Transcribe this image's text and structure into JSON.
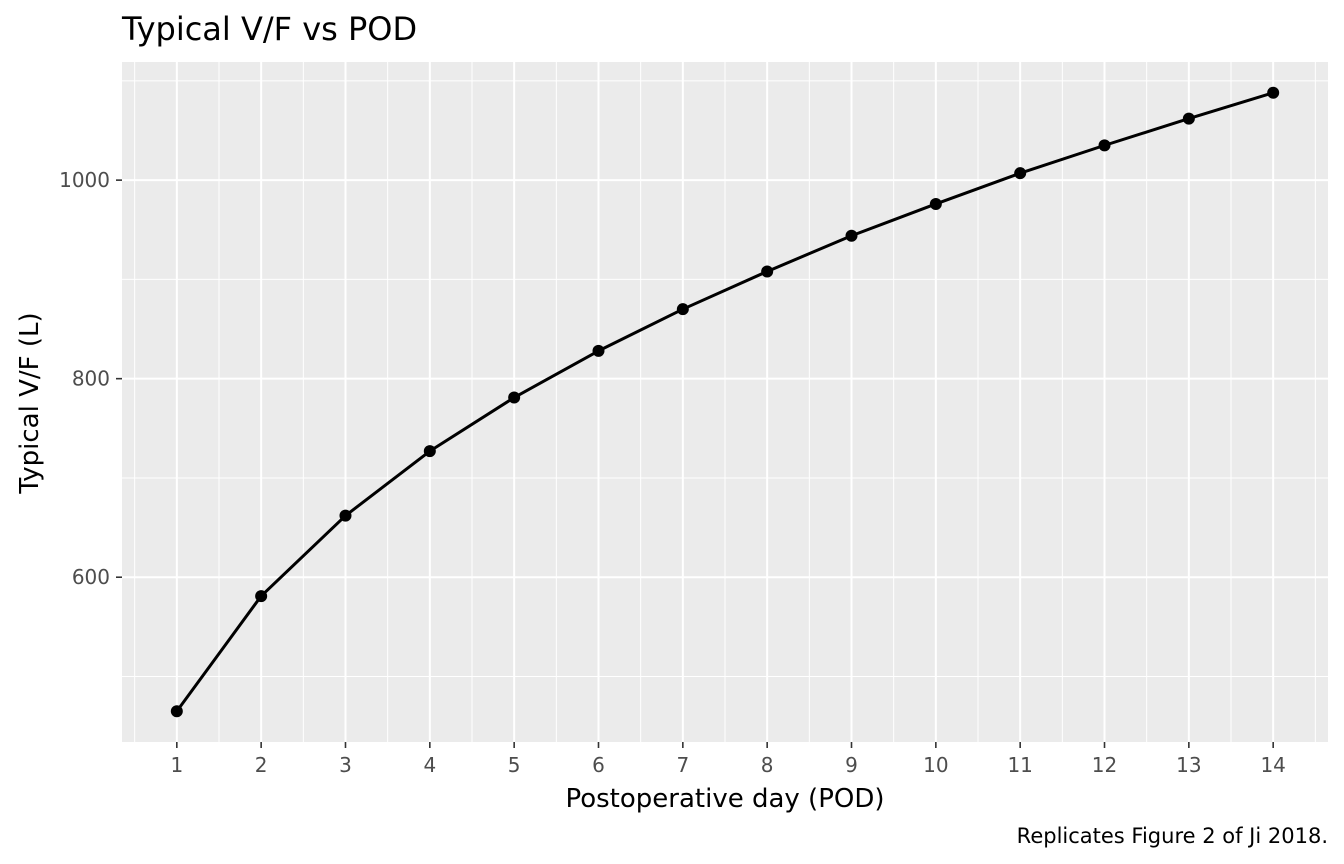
{
  "chart_data": {
    "type": "line",
    "title": "Typical V/F vs POD",
    "xlabel": "Postoperative day (POD)",
    "ylabel": "Typical V/F (L)",
    "caption": "Replicates Figure 2 of Ji 2018.",
    "x": [
      1,
      2,
      3,
      4,
      5,
      6,
      7,
      8,
      9,
      10,
      11,
      12,
      13,
      14
    ],
    "series": [
      {
        "values": [
          465,
          581,
          662,
          727,
          781,
          828,
          870,
          908,
          944,
          976,
          1007,
          1035,
          1062,
          1088
        ]
      }
    ],
    "xlim": [
      0.35,
      14.65
    ],
    "ylim": [
      434,
      1119
    ],
    "x_ticks": [
      "1",
      "2",
      "3",
      "4",
      "5",
      "6",
      "7",
      "8",
      "9",
      "10",
      "11",
      "12",
      "13",
      "14"
    ],
    "y_ticks": [
      "600",
      "800",
      "1000"
    ],
    "y_tick_values": [
      600,
      800,
      1000
    ],
    "y_minor_values": [
      500,
      700,
      900,
      1100
    ],
    "grid": true,
    "legend": "none",
    "colors": {
      "panel": "#ebebeb",
      "grid": "#ffffff",
      "line": "#000000",
      "tick_text": "#4d4d4d"
    }
  }
}
